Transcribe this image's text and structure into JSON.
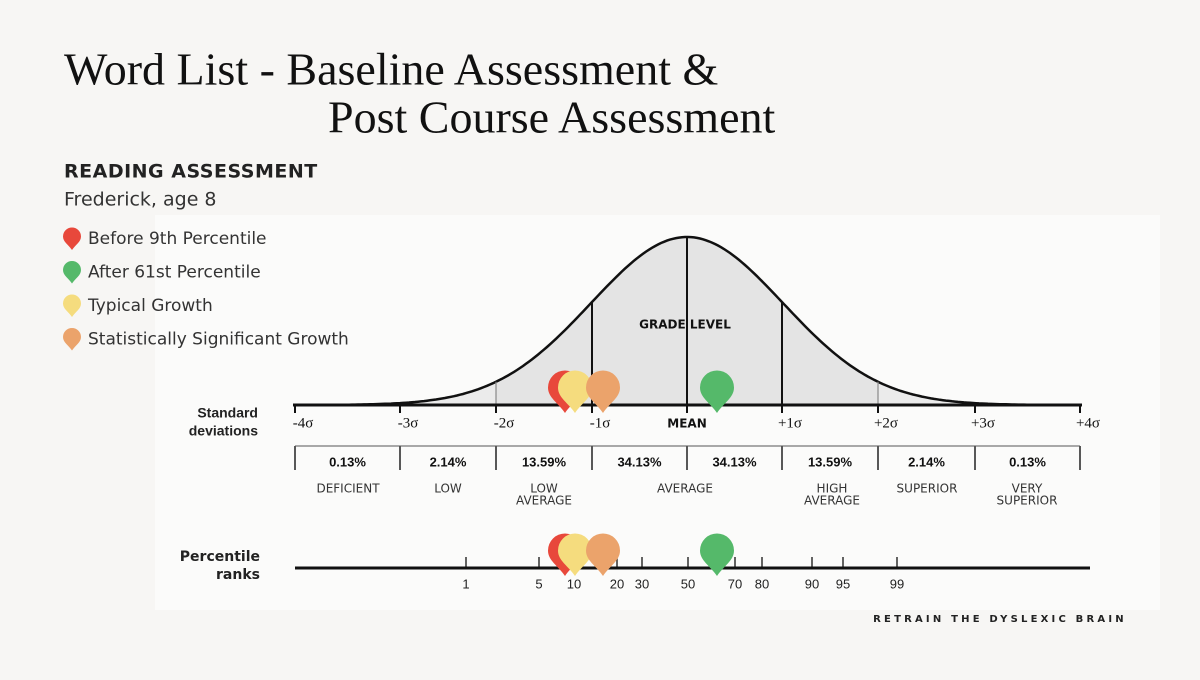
{
  "header": {
    "title_lines": [
      "Word List - Baseline Assessment &",
      "Post Course Assessment"
    ],
    "heading": "READING ASSESSMENT",
    "subtitle": "Frederick, age 8"
  },
  "legend": [
    {
      "label": "Before 9th Percentile",
      "color": "#e8483b"
    },
    {
      "label": "After 61st Percentile",
      "color": "#55b96a"
    },
    {
      "label": "Typical Growth",
      "color": "#f5dc7e"
    },
    {
      "label": "Statistically Significant Growth",
      "color": "#eba36b"
    }
  ],
  "diagram": {
    "grade_level": "GRADE LEVEL",
    "sd_label": [
      "Standard",
      "deviations"
    ],
    "sigmas": [
      "-4σ",
      "-3σ",
      "-2σ",
      "-1σ",
      "MEAN",
      "+1σ",
      "+2σ",
      "+3σ",
      "+4σ"
    ],
    "percentages": [
      "0.13%",
      "2.14%",
      "13.59%",
      "34.13%",
      "34.13%",
      "13.59%",
      "2.14%",
      "0.13%"
    ],
    "categories": [
      [
        "DEFICIENT"
      ],
      [
        "LOW"
      ],
      [
        "LOW",
        "AVERAGE"
      ],
      [
        "AVERAGE"
      ],
      [
        "HIGH",
        "AVERAGE"
      ],
      [
        "SUPERIOR"
      ],
      [
        "VERY",
        "SUPERIOR"
      ]
    ],
    "percentile_label": [
      "Percentile",
      "ranks"
    ],
    "percentile_ticks": [
      "1",
      "5",
      "10",
      "20",
      "30",
      "50",
      "70",
      "80",
      "90",
      "95",
      "99"
    ]
  },
  "footer": "RETRAIN THE DYSLEXIC BRAIN"
}
